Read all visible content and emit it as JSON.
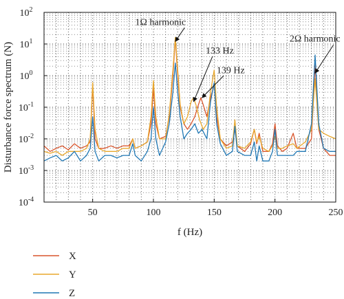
{
  "chart_data": {
    "type": "line",
    "xlabel": "f (Hz)",
    "ylabel": "Disturbance force spectrum (N)",
    "xlim": [
      10,
      250
    ],
    "ylim_log10": [
      -4,
      2
    ],
    "yscale": "log",
    "grid": true,
    "legend_placement": "bottom-left, below plot",
    "x_ticks": [
      {
        "value": 50,
        "label": "50"
      },
      {
        "value": 100,
        "label": "100"
      },
      {
        "value": 150,
        "label": "150"
      },
      {
        "value": 200,
        "label": "200"
      },
      {
        "value": 250,
        "label": "250"
      }
    ],
    "y_ticks": [
      {
        "exp": 2,
        "base": "10",
        "sup": "2"
      },
      {
        "exp": 1,
        "base": "10",
        "sup": "1"
      },
      {
        "exp": 0,
        "base": "10",
        "sup": "0"
      },
      {
        "exp": -1,
        "base": "10",
        "sup": "-1"
      },
      {
        "exp": -2,
        "base": "10",
        "sup": "-2"
      },
      {
        "exp": -3,
        "base": "10",
        "sup": "-3"
      },
      {
        "exp": -4,
        "base": "10",
        "sup": "-4"
      }
    ],
    "annotations": [
      {
        "text": "1Ω harmonic",
        "x": 85,
        "y": 40,
        "arrow_to": [
          118,
          12
        ]
      },
      {
        "text": "133 Hz",
        "x": 143,
        "y": 5,
        "arrow_to": [
          133,
          0.15
        ]
      },
      {
        "text": "139 Hz",
        "x": 152,
        "y": 1.2,
        "arrow_to": [
          140,
          0.2
        ]
      },
      {
        "text": "2Ω harmonic",
        "x": 212,
        "y": 12,
        "arrow_to": [
          233,
          1.2
        ]
      }
    ],
    "series": [
      {
        "name": "X",
        "color": "#d9542b",
        "points": [
          [
            10,
            0.006
          ],
          [
            15,
            0.004
          ],
          [
            20,
            0.005
          ],
          [
            25,
            0.006
          ],
          [
            30,
            0.0045
          ],
          [
            35,
            0.007
          ],
          [
            40,
            0.005
          ],
          [
            45,
            0.006
          ],
          [
            48,
            0.008
          ],
          [
            50,
            0.5
          ],
          [
            52,
            0.01
          ],
          [
            55,
            0.005
          ],
          [
            60,
            0.005
          ],
          [
            65,
            0.006
          ],
          [
            70,
            0.005
          ],
          [
            75,
            0.006
          ],
          [
            80,
            0.006
          ],
          [
            83,
            0.01
          ],
          [
            85,
            0.005
          ],
          [
            90,
            0.006
          ],
          [
            95,
            0.008
          ],
          [
            98,
            0.03
          ],
          [
            100,
            0.4
          ],
          [
            102,
            0.03
          ],
          [
            105,
            0.01
          ],
          [
            110,
            0.012
          ],
          [
            113,
            0.05
          ],
          [
            116,
            1.0
          ],
          [
            118,
            15
          ],
          [
            120,
            1.0
          ],
          [
            122,
            0.1
          ],
          [
            125,
            0.03
          ],
          [
            128,
            0.02
          ],
          [
            131,
            0.03
          ],
          [
            134,
            0.05
          ],
          [
            137,
            0.12
          ],
          [
            139,
            0.2
          ],
          [
            141,
            0.12
          ],
          [
            144,
            0.05
          ],
          [
            147,
            0.2
          ],
          [
            150,
            0.5
          ],
          [
            152,
            0.05
          ],
          [
            155,
            0.01
          ],
          [
            160,
            0.006
          ],
          [
            165,
            0.008
          ],
          [
            167,
            0.02
          ],
          [
            169,
            0.006
          ],
          [
            175,
            0.004
          ],
          [
            180,
            0.007
          ],
          [
            183,
            0.02
          ],
          [
            185,
            0.007
          ],
          [
            187,
            0.015
          ],
          [
            190,
            0.004
          ],
          [
            195,
            0.004
          ],
          [
            198,
            0.007
          ],
          [
            200,
            0.03
          ],
          [
            202,
            0.006
          ],
          [
            206,
            0.004
          ],
          [
            210,
            0.005
          ],
          [
            215,
            0.015
          ],
          [
            218,
            0.005
          ],
          [
            225,
            0.005
          ],
          [
            230,
            0.01
          ],
          [
            233,
            2.5
          ],
          [
            236,
            0.02
          ],
          [
            240,
            0.005
          ],
          [
            245,
            0.003
          ],
          [
            250,
            0.003
          ]
        ]
      },
      {
        "name": "Y",
        "color": "#e8a72c",
        "points": [
          [
            10,
            0.004
          ],
          [
            15,
            0.0035
          ],
          [
            20,
            0.004
          ],
          [
            25,
            0.003
          ],
          [
            30,
            0.004
          ],
          [
            35,
            0.004
          ],
          [
            40,
            0.004
          ],
          [
            45,
            0.005
          ],
          [
            48,
            0.01
          ],
          [
            50,
            0.6
          ],
          [
            52,
            0.02
          ],
          [
            55,
            0.005
          ],
          [
            60,
            0.004
          ],
          [
            65,
            0.004
          ],
          [
            70,
            0.004
          ],
          [
            75,
            0.005
          ],
          [
            80,
            0.005
          ],
          [
            83,
            0.01
          ],
          [
            85,
            0.005
          ],
          [
            90,
            0.006
          ],
          [
            95,
            0.008
          ],
          [
            98,
            0.05
          ],
          [
            100,
            0.7
          ],
          [
            102,
            0.05
          ],
          [
            105,
            0.01
          ],
          [
            110,
            0.01
          ],
          [
            113,
            0.06
          ],
          [
            116,
            1.5
          ],
          [
            118,
            16
          ],
          [
            120,
            1.5
          ],
          [
            122,
            0.12
          ],
          [
            125,
            0.03
          ],
          [
            128,
            0.05
          ],
          [
            131,
            0.15
          ],
          [
            133,
            0.2
          ],
          [
            135,
            0.12
          ],
          [
            138,
            0.04
          ],
          [
            141,
            0.02
          ],
          [
            144,
            0.03
          ],
          [
            147,
            0.3
          ],
          [
            150,
            1.5
          ],
          [
            152,
            0.1
          ],
          [
            155,
            0.01
          ],
          [
            160,
            0.005
          ],
          [
            165,
            0.006
          ],
          [
            167,
            0.04
          ],
          [
            169,
            0.006
          ],
          [
            175,
            0.005
          ],
          [
            180,
            0.008
          ],
          [
            183,
            0.02
          ],
          [
            185,
            0.008
          ],
          [
            187,
            0.012
          ],
          [
            190,
            0.005
          ],
          [
            195,
            0.004
          ],
          [
            198,
            0.006
          ],
          [
            200,
            0.012
          ],
          [
            202,
            0.005
          ],
          [
            206,
            0.005
          ],
          [
            210,
            0.006
          ],
          [
            215,
            0.007
          ],
          [
            218,
            0.005
          ],
          [
            225,
            0.008
          ],
          [
            230,
            0.02
          ],
          [
            233,
            0.8
          ],
          [
            236,
            0.02
          ],
          [
            240,
            0.015
          ],
          [
            245,
            0.012
          ],
          [
            250,
            0.01
          ]
        ]
      },
      {
        "name": "Z",
        "color": "#1f77b4",
        "points": [
          [
            10,
            0.002
          ],
          [
            15,
            0.0025
          ],
          [
            20,
            0.003
          ],
          [
            25,
            0.002
          ],
          [
            30,
            0.0025
          ],
          [
            35,
            0.004
          ],
          [
            40,
            0.002
          ],
          [
            45,
            0.003
          ],
          [
            48,
            0.005
          ],
          [
            50,
            0.05
          ],
          [
            52,
            0.004
          ],
          [
            55,
            0.002
          ],
          [
            60,
            0.003
          ],
          [
            65,
            0.003
          ],
          [
            70,
            0.0025
          ],
          [
            75,
            0.003
          ],
          [
            80,
            0.003
          ],
          [
            83,
            0.007
          ],
          [
            85,
            0.003
          ],
          [
            90,
            0.002
          ],
          [
            95,
            0.004
          ],
          [
            98,
            0.01
          ],
          [
            100,
            0.1
          ],
          [
            102,
            0.01
          ],
          [
            105,
            0.003
          ],
          [
            110,
            0.008
          ],
          [
            113,
            0.03
          ],
          [
            116,
            0.3
          ],
          [
            118,
            2.5
          ],
          [
            120,
            0.3
          ],
          [
            122,
            0.05
          ],
          [
            125,
            0.01
          ],
          [
            128,
            0.015
          ],
          [
            131,
            0.02
          ],
          [
            134,
            0.03
          ],
          [
            137,
            0.015
          ],
          [
            140,
            0.02
          ],
          [
            144,
            0.01
          ],
          [
            147,
            0.15
          ],
          [
            150,
            0.6
          ],
          [
            152,
            0.03
          ],
          [
            155,
            0.007
          ],
          [
            160,
            0.003
          ],
          [
            165,
            0.004
          ],
          [
            167,
            0.025
          ],
          [
            169,
            0.004
          ],
          [
            175,
            0.003
          ],
          [
            180,
            0.003
          ],
          [
            183,
            0.008
          ],
          [
            185,
            0.002
          ],
          [
            187,
            0.006
          ],
          [
            190,
            0.002
          ],
          [
            195,
            0.002
          ],
          [
            198,
            0.004
          ],
          [
            200,
            0.02
          ],
          [
            202,
            0.003
          ],
          [
            206,
            0.003
          ],
          [
            210,
            0.003
          ],
          [
            215,
            0.003
          ],
          [
            218,
            0.004
          ],
          [
            225,
            0.004
          ],
          [
            230,
            0.03
          ],
          [
            233,
            4.5
          ],
          [
            236,
            0.03
          ],
          [
            240,
            0.005
          ],
          [
            245,
            0.004
          ],
          [
            250,
            0.004
          ]
        ]
      }
    ]
  }
}
